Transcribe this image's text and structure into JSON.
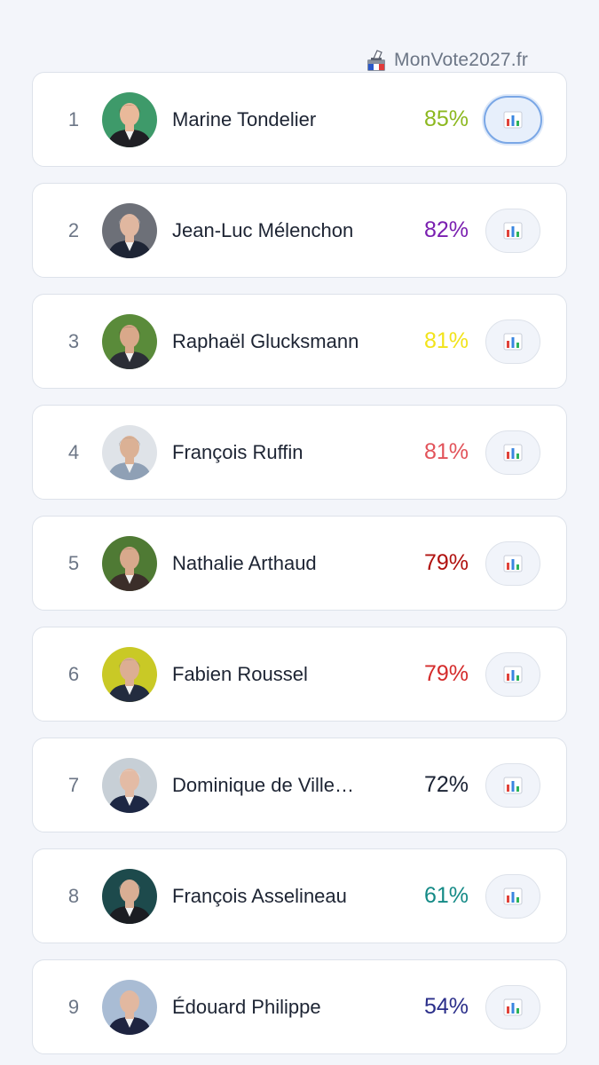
{
  "brand": {
    "label": "MonVote2027.fr",
    "icon": "ballot-box-icon"
  },
  "candidates": [
    {
      "rank": "1",
      "name": "Marine Tondelier",
      "score": "85%",
      "score_color": "#8cb81f",
      "avatar_bg": "#3e9a6a",
      "skin": "#e9b99a",
      "hair": "#6b3a22",
      "suit": "#1f1f24",
      "selected": true
    },
    {
      "rank": "2",
      "name": "Jean-Luc Mélenchon",
      "score": "82%",
      "score_color": "#7a1fb0",
      "avatar_bg": "#6d7078",
      "skin": "#e0b7a0",
      "hair": "#d9d9dc",
      "suit": "#1e2535",
      "selected": false
    },
    {
      "rank": "3",
      "name": "Raphaël Glucksmann",
      "score": "81%",
      "score_color": "#f2e31a",
      "avatar_bg": "#5a8b3a",
      "skin": "#d9a88a",
      "hair": "#4a3526",
      "suit": "#2b2e36",
      "selected": false
    },
    {
      "rank": "4",
      "name": "François Ruffin",
      "score": "81%",
      "score_color": "#e2535a",
      "avatar_bg": "#dfe3e8",
      "skin": "#dbb195",
      "hair": "#7d7d80",
      "suit": "#8fa0b5",
      "selected": false
    },
    {
      "rank": "5",
      "name": "Nathalie Arthaud",
      "score": "79%",
      "score_color": "#b0110f",
      "avatar_bg": "#4f7a34",
      "skin": "#d8a98c",
      "hair": "#5d4636",
      "suit": "#3b2e2a",
      "selected": false
    },
    {
      "rank": "6",
      "name": "Fabien Roussel",
      "score": "79%",
      "score_color": "#d42b2b",
      "avatar_bg": "#c9c926",
      "skin": "#dcae93",
      "hair": "#6a6a6a",
      "suit": "#232c3f",
      "selected": false
    },
    {
      "rank": "7",
      "name": "Dominique de Ville…",
      "score": "72%",
      "score_color": "#1a2233",
      "avatar_bg": "#c7cfd6",
      "skin": "#e3bba5",
      "hair": "#eeeeee",
      "suit": "#1d2744",
      "selected": false
    },
    {
      "rank": "8",
      "name": "François Asselineau",
      "score": "61%",
      "score_color": "#148a86",
      "avatar_bg": "#1d4a4c",
      "skin": "#d9ae94",
      "hair": "#b8b8b8",
      "suit": "#1b1d22",
      "selected": false
    },
    {
      "rank": "9",
      "name": "Édouard Philippe",
      "score": "54%",
      "score_color": "#2b2f8a",
      "avatar_bg": "#a9bcd4",
      "skin": "#e2b8a0",
      "hair": "#c4c4c4",
      "suit": "#1e2440",
      "selected": false
    }
  ],
  "stats_icon": "bar-chart-icon"
}
